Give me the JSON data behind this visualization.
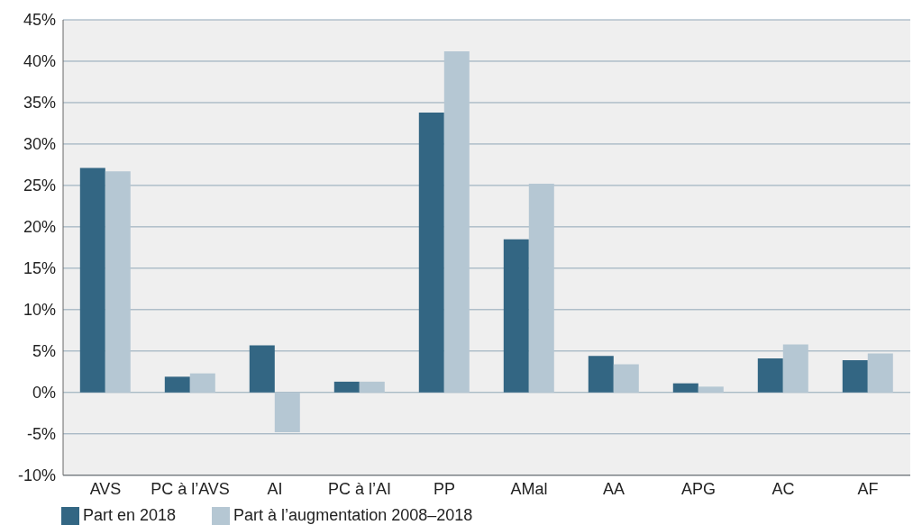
{
  "chart_data": {
    "type": "bar",
    "categories": [
      "AVS",
      "PC à l’AVS",
      "AI",
      "PC à l’AI",
      "PP",
      "AMal",
      "AA",
      "APG",
      "AC",
      "AF"
    ],
    "series": [
      {
        "name": "Part en 2018",
        "color": "#336683",
        "values": [
          27.1,
          1.9,
          5.7,
          1.3,
          33.8,
          18.5,
          4.4,
          1.1,
          4.1,
          3.9
        ]
      },
      {
        "name": "Part à l’augmentation 2008–2018",
        "color": "#b5c7d3",
        "values": [
          26.7,
          2.3,
          -4.8,
          1.3,
          41.2,
          25.2,
          3.4,
          0.7,
          5.8,
          4.7
        ]
      }
    ],
    "ylim": [
      -10,
      45
    ],
    "yticks": [
      {
        "value": -10,
        "label": "-10%"
      },
      {
        "value": -5,
        "label": "-5%"
      },
      {
        "value": 0,
        "label": "0%"
      },
      {
        "value": 5,
        "label": "5%"
      },
      {
        "value": 10,
        "label": "10%"
      },
      {
        "value": 15,
        "label": "15%"
      },
      {
        "value": 20,
        "label": "20%"
      },
      {
        "value": 25,
        "label": "25%"
      },
      {
        "value": 30,
        "label": "30%"
      },
      {
        "value": 35,
        "label": "35%"
      },
      {
        "value": 40,
        "label": "40%"
      },
      {
        "value": 45,
        "label": "45%"
      }
    ],
    "grid": "y",
    "legend": "bottom left"
  }
}
